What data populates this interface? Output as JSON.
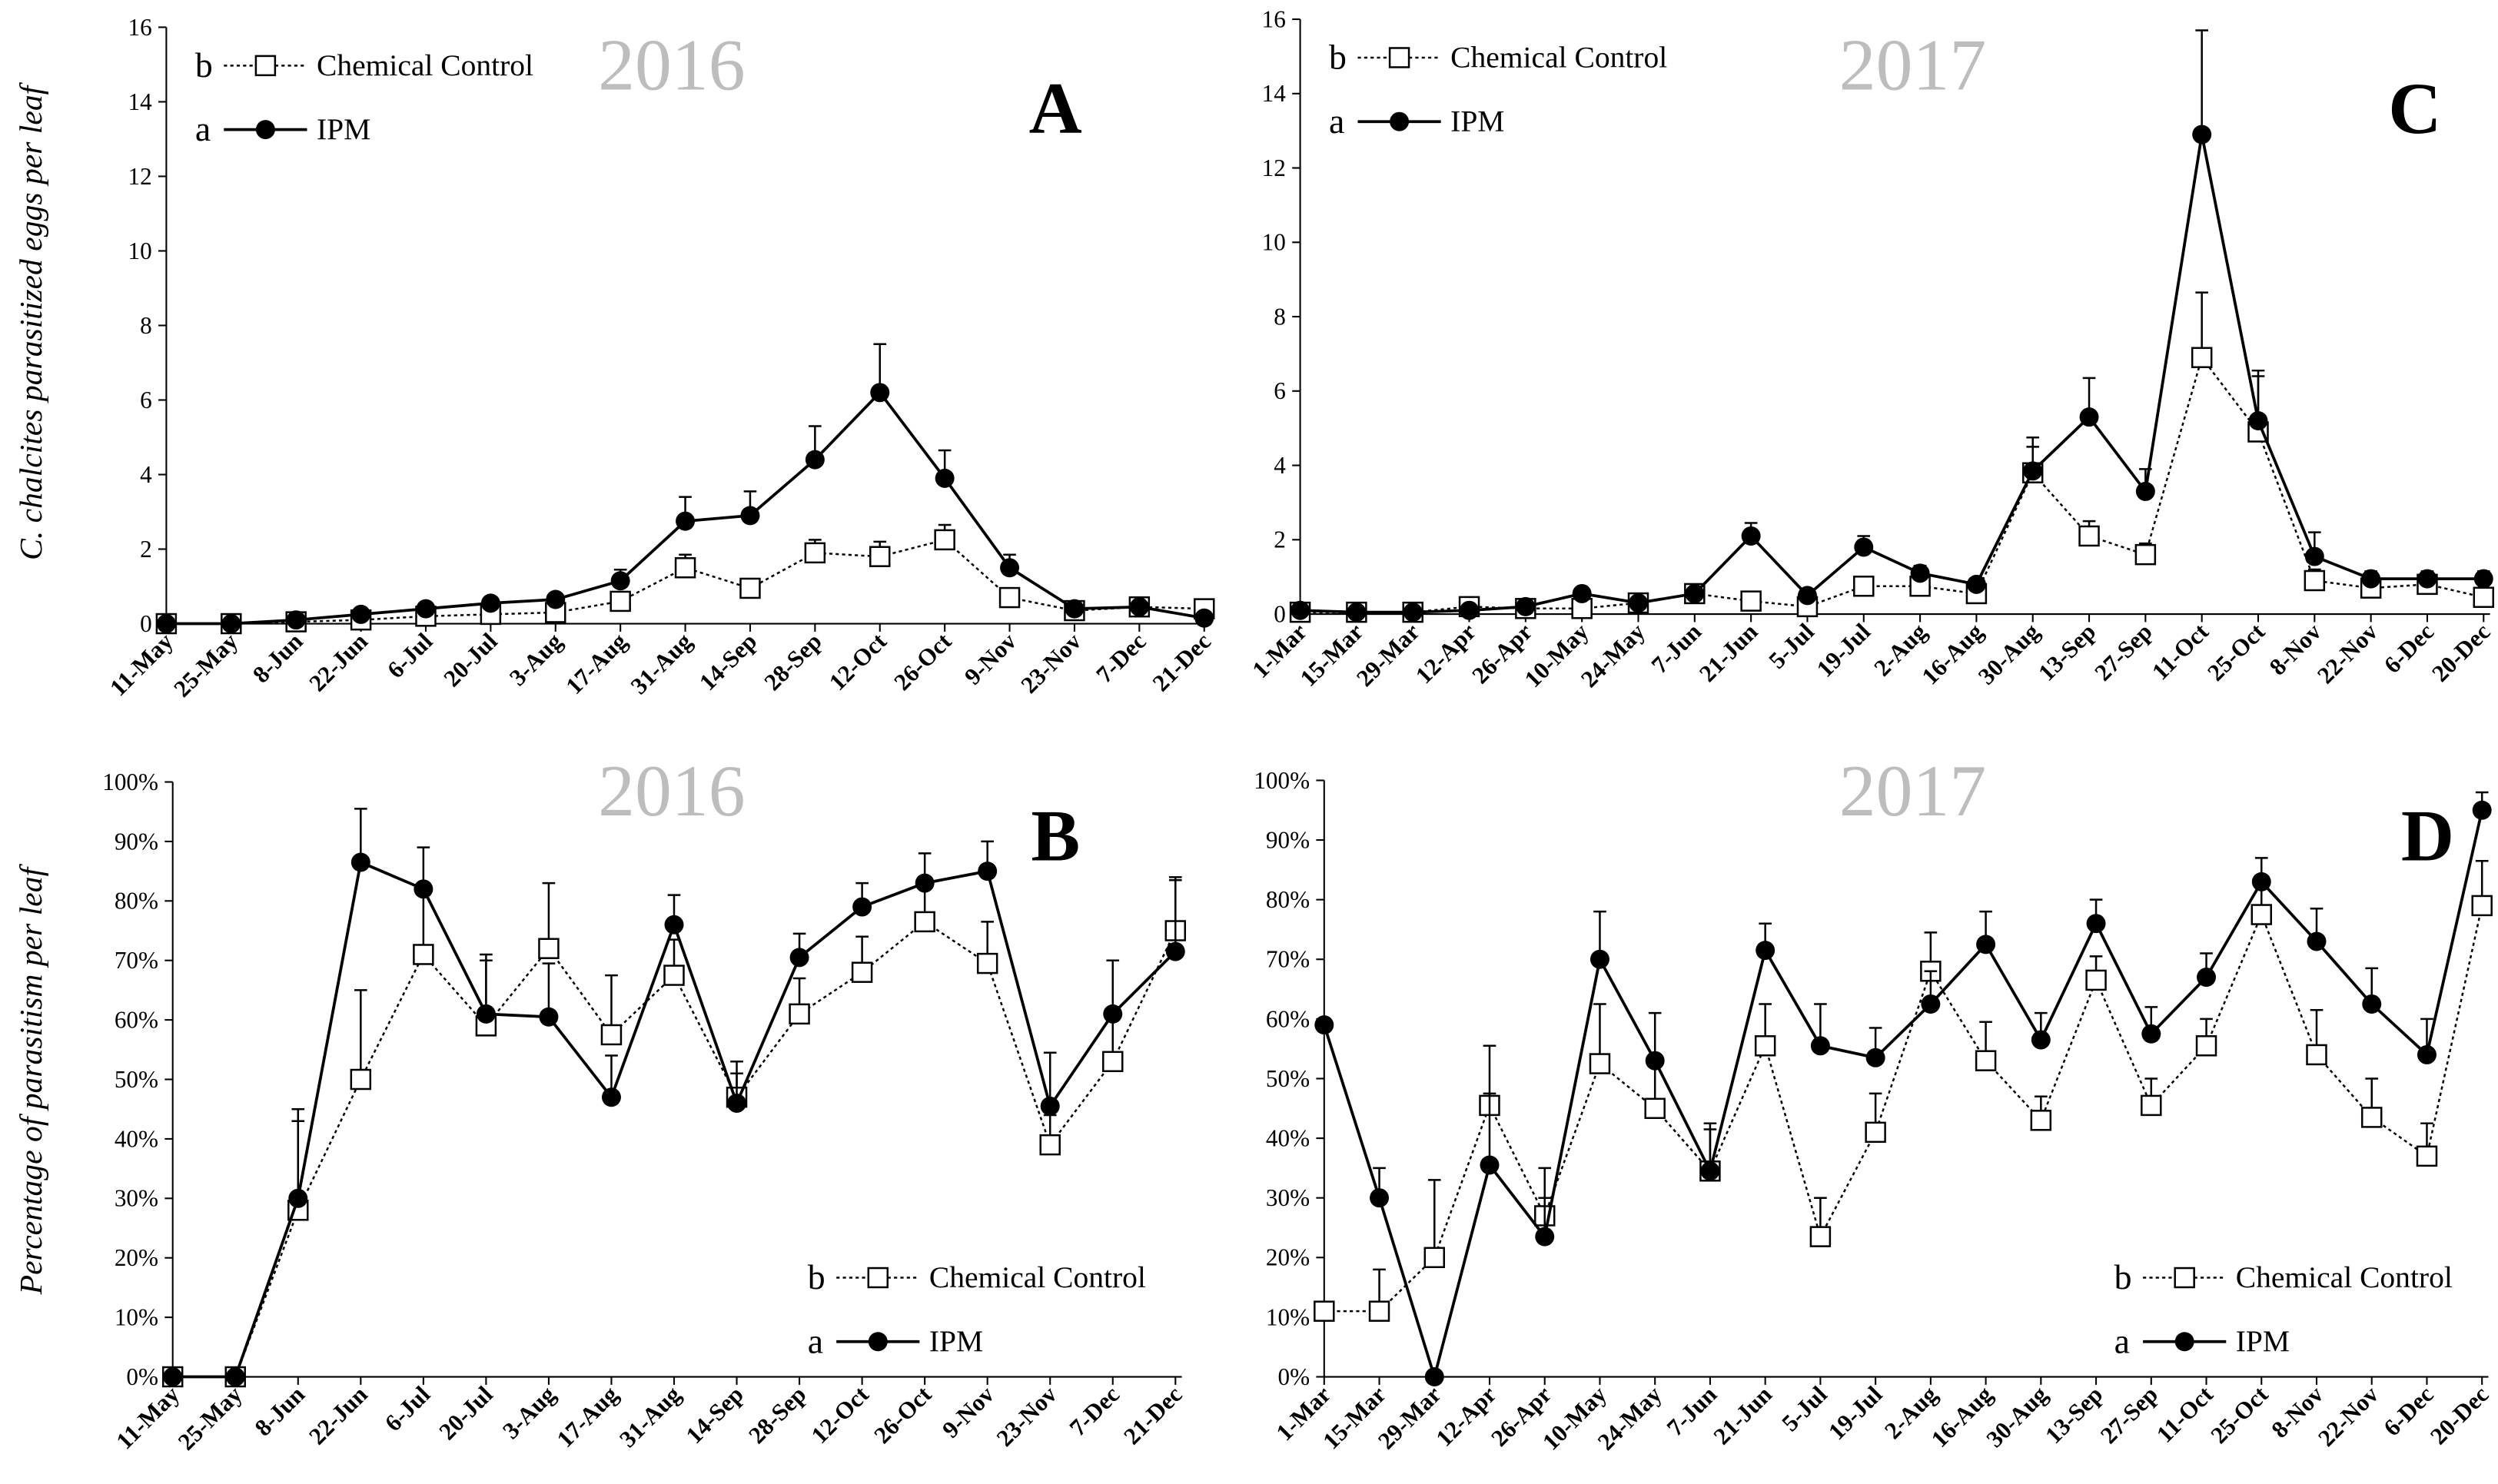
{
  "figure": {
    "ylabel_top": "C. chalcites parasitized eggs per leaf",
    "ylabel_bottom": "Percentage of parasitism per leaf"
  },
  "chart_data": [
    {
      "id": "A",
      "type": "line",
      "letter": "A",
      "year_label": "2016",
      "ylim": [
        0,
        16
      ],
      "yticks": [
        0,
        2,
        4,
        6,
        8,
        10,
        12,
        14,
        16
      ],
      "percent": false,
      "categories": [
        "11-May",
        "25-May",
        "8-Jun",
        "22-Jun",
        "6-Jul",
        "20-Jul",
        "3-Aug",
        "17-Aug",
        "31-Aug",
        "14-Sep",
        "28-Sep",
        "12-Oct",
        "26-Oct",
        "9-Nov",
        "23-Nov",
        "7-Dec",
        "21-Dec"
      ],
      "legend_position": "top-left",
      "series": [
        {
          "name": "Chemical Control",
          "group": "b",
          "marker": "open-square",
          "style": "dotted",
          "values": [
            0,
            0,
            0.05,
            0.1,
            0.2,
            0.25,
            0.3,
            0.6,
            1.5,
            0.95,
            1.9,
            1.8,
            2.25,
            0.7,
            0.35,
            0.45,
            0.4
          ],
          "errors": [
            0,
            0,
            0.05,
            0.1,
            0.1,
            0.1,
            0.1,
            0.2,
            0.35,
            0.15,
            0.35,
            0.4,
            0.4,
            0.2,
            0.1,
            0.1,
            0.1
          ]
        },
        {
          "name": "IPM",
          "group": "a",
          "marker": "filled-circle",
          "style": "solid",
          "values": [
            0,
            0,
            0.1,
            0.25,
            0.4,
            0.55,
            0.65,
            1.15,
            2.75,
            2.9,
            4.4,
            6.2,
            3.9,
            1.5,
            0.4,
            0.45,
            0.15
          ],
          "errors": [
            0,
            0,
            0.05,
            0.1,
            0.1,
            0.1,
            0.15,
            0.3,
            0.65,
            0.65,
            0.9,
            1.3,
            0.75,
            0.35,
            0.1,
            0.15,
            0.1
          ]
        }
      ]
    },
    {
      "id": "B",
      "type": "line",
      "letter": "B",
      "year_label": "2016",
      "ylim": [
        0,
        100
      ],
      "yticks": [
        0,
        10,
        20,
        30,
        40,
        50,
        60,
        70,
        80,
        90,
        100
      ],
      "percent": true,
      "categories": [
        "11-May",
        "25-May",
        "8-Jun",
        "22-Jun",
        "6-Jul",
        "20-Jul",
        "3-Aug",
        "17-Aug",
        "31-Aug",
        "14-Sep",
        "28-Sep",
        "12-Oct",
        "26-Oct",
        "9-Nov",
        "23-Nov",
        "7-Dec",
        "21-Dec"
      ],
      "legend_position": "bottom-right",
      "series": [
        {
          "name": "Chemical Control",
          "group": "b",
          "marker": "open-square",
          "style": "dotted",
          "values": [
            0,
            0,
            28,
            50,
            71,
            59,
            72,
            57.5,
            67.5,
            47,
            61,
            68,
            76.5,
            69.5,
            39,
            53,
            75
          ],
          "errors": [
            0,
            0,
            15,
            15,
            12,
            12,
            11,
            10,
            6,
            6,
            6,
            6,
            6,
            7,
            5,
            7,
            9
          ]
        },
        {
          "name": "IPM",
          "group": "a",
          "marker": "filled-circle",
          "style": "solid",
          "values": [
            0,
            0,
            30,
            86.5,
            82,
            61,
            60.5,
            47,
            76,
            46,
            70.5,
            79,
            83,
            85,
            45.5,
            61,
            71.5
          ],
          "errors": [
            0,
            0,
            15,
            9,
            7,
            9,
            9,
            7,
            5,
            5,
            4,
            4,
            5,
            5,
            9,
            9,
            12
          ]
        }
      ]
    },
    {
      "id": "C",
      "type": "line",
      "letter": "C",
      "year_label": "2017",
      "ylim": [
        0,
        16
      ],
      "yticks": [
        0,
        2,
        4,
        6,
        8,
        10,
        12,
        14,
        16
      ],
      "percent": false,
      "categories": [
        "1-Mar",
        "15-Mar",
        "29-Mar",
        "12-Apr",
        "26-Apr",
        "10-May",
        "24-May",
        "7-Jun",
        "21-Jun",
        "5-Jul",
        "19-Jul",
        "2-Aug",
        "16-Aug",
        "30-Aug",
        "13-Sep",
        "27-Sep",
        "11-Oct",
        "25-Oct",
        "8-Nov",
        "22-Nov",
        "6-Dec",
        "20-Dec"
      ],
      "legend_position": "top-left",
      "series": [
        {
          "name": "Chemical Control",
          "group": "b",
          "marker": "open-square",
          "style": "dotted",
          "values": [
            0.05,
            0.05,
            0.05,
            0.2,
            0.15,
            0.15,
            0.3,
            0.55,
            0.35,
            0.2,
            0.75,
            0.75,
            0.55,
            3.8,
            2.1,
            1.6,
            6.9,
            4.9,
            0.9,
            0.7,
            0.8,
            0.45
          ],
          "errors": [
            0.05,
            0.05,
            0.05,
            0.1,
            0.1,
            0.1,
            0.15,
            0.15,
            0.15,
            0.1,
            0.2,
            0.2,
            0.2,
            0.7,
            0.4,
            0.3,
            1.75,
            1.5,
            0.3,
            0.2,
            0.2,
            0.2
          ]
        },
        {
          "name": "IPM",
          "group": "a",
          "marker": "filled-circle",
          "style": "solid",
          "values": [
            0.1,
            0.05,
            0.05,
            0.1,
            0.2,
            0.55,
            0.3,
            0.55,
            2.1,
            0.5,
            1.8,
            1.1,
            0.8,
            3.85,
            5.3,
            3.3,
            12.9,
            5.2,
            1.55,
            0.95,
            0.95,
            0.95
          ],
          "errors": [
            0.05,
            0.05,
            0.05,
            0.05,
            0.1,
            0.15,
            0.1,
            0.15,
            0.35,
            0.15,
            0.3,
            0.2,
            0.15,
            0.9,
            1.05,
            0.6,
            2.8,
            1.35,
            0.65,
            0.2,
            0.2,
            0.2
          ]
        }
      ]
    },
    {
      "id": "D",
      "type": "line",
      "letter": "D",
      "year_label": "2017",
      "ylim": [
        0,
        100
      ],
      "yticks": [
        0,
        10,
        20,
        30,
        40,
        50,
        60,
        70,
        80,
        90,
        100
      ],
      "percent": true,
      "categories": [
        "1-Mar",
        "15-Mar",
        "29-Mar",
        "12-Apr",
        "26-Apr",
        "10-May",
        "24-May",
        "7-Jun",
        "21-Jun",
        "5-Jul",
        "19-Jul",
        "2-Aug",
        "16-Aug",
        "30-Aug",
        "13-Sep",
        "27-Sep",
        "11-Oct",
        "25-Oct",
        "8-Nov",
        "22-Nov",
        "6-Dec",
        "20-Dec"
      ],
      "legend_position": "bottom-right",
      "series": [
        {
          "name": "Chemical Control",
          "group": "b",
          "marker": "open-square",
          "style": "dotted",
          "values": [
            11,
            11,
            20,
            45.5,
            27,
            52.5,
            45,
            34.5,
            55.5,
            23.5,
            41,
            68,
            53,
            43,
            66.5,
            45.5,
            55.5,
            77.5,
            54,
            43.5,
            37,
            79
          ],
          "errors": [
            0,
            7,
            13,
            10,
            8,
            10,
            8,
            7,
            7,
            6.5,
            6.5,
            6.5,
            6.5,
            4,
            4,
            4.5,
            4.5,
            4.5,
            7.5,
            6.5,
            5.5,
            7.5
          ]
        },
        {
          "name": "IPM",
          "group": "a",
          "marker": "filled-circle",
          "style": "solid",
          "values": [
            59,
            30,
            0,
            35.5,
            23.5,
            70,
            53,
            34.5,
            71.5,
            55.5,
            53.5,
            62.5,
            72.5,
            56.5,
            76,
            57.5,
            67,
            83,
            73,
            62.5,
            54,
            95
          ],
          "errors": [
            0,
            5,
            0,
            12,
            6.5,
            8,
            8,
            8,
            4.5,
            7,
            5,
            5.5,
            5.5,
            4.5,
            4,
            4.5,
            4,
            4,
            5.5,
            6,
            6,
            3
          ]
        }
      ]
    }
  ]
}
